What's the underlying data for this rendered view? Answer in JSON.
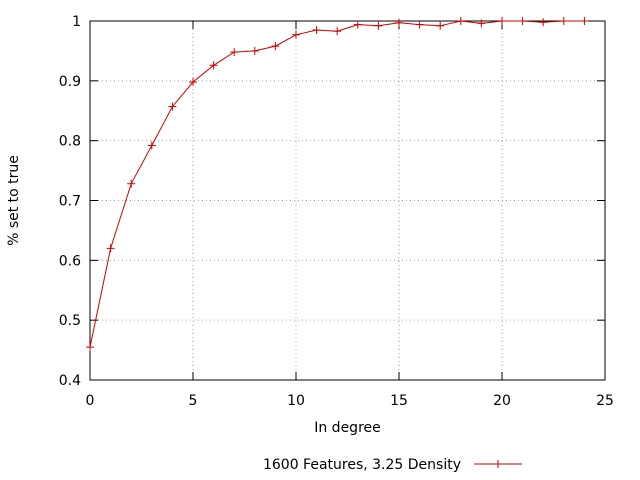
{
  "chart_data": {
    "type": "line",
    "xlabel": "In degree",
    "ylabel": "% set to true",
    "xlim": [
      0,
      25
    ],
    "ylim": [
      0.4,
      1
    ],
    "xticks": [
      0,
      5,
      10,
      15,
      20,
      25
    ],
    "yticks": [
      0.4,
      0.5,
      0.6,
      0.7,
      0.8,
      0.9,
      1
    ],
    "xtick_labels": [
      "0",
      "5",
      "10",
      "15",
      "20",
      "25"
    ],
    "ytick_labels": [
      "0.4",
      "0.5",
      "0.6",
      "0.7",
      "0.8",
      "0.9",
      "1"
    ],
    "grid": true,
    "legend_position": "bottom-center",
    "series": [
      {
        "name": "1600 Features, 3.25 Density",
        "color": "#cc0000",
        "marker": "plus",
        "x": [
          0,
          1,
          2,
          3,
          4,
          5,
          6,
          7,
          8,
          9,
          10,
          11,
          12,
          13,
          14,
          15,
          16,
          17,
          18,
          19,
          20,
          21,
          22,
          23,
          24
        ],
        "y": [
          0.455,
          0.62,
          0.728,
          0.792,
          0.857,
          0.898,
          0.926,
          0.948,
          0.95,
          0.958,
          0.977,
          0.985,
          0.983,
          0.994,
          0.992,
          0.997,
          0.994,
          0.992,
          1.0,
          0.996,
          1.0,
          1.0,
          0.998,
          1.0,
          1.0
        ]
      }
    ]
  }
}
